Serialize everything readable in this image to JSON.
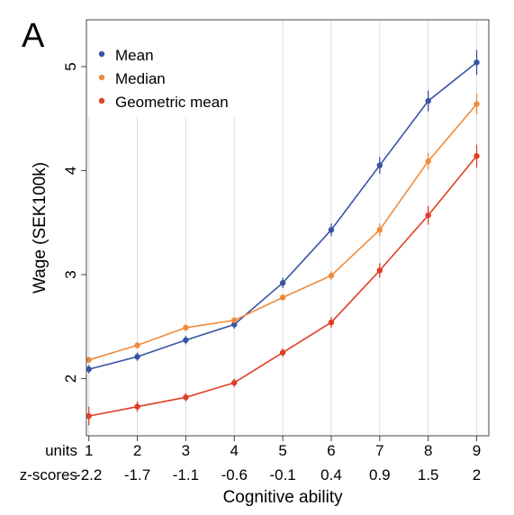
{
  "panel_label": "A",
  "chart_data": {
    "type": "line",
    "title": "",
    "xlabel": "Cognitive ability",
    "ylabel": "Wage (SEK100k)",
    "x": [
      1,
      2,
      3,
      4,
      5,
      6,
      7,
      8,
      9
    ],
    "x_tick_rows": [
      {
        "label": "units",
        "ticks": [
          "1",
          "2",
          "3",
          "4",
          "5",
          "6",
          "7",
          "8",
          "9"
        ]
      },
      {
        "label": "z-scores",
        "ticks": [
          "-2.2",
          "-1.7",
          "-1.1",
          "-0.6",
          "-0.1",
          "0.4",
          "0.9",
          "1.5",
          "2"
        ]
      }
    ],
    "xlim": [
      0.95,
      9.25
    ],
    "ylim": [
      1.45,
      5.45
    ],
    "y_ticks": [
      2,
      3,
      4,
      5
    ],
    "grid": "vertical",
    "legend_position": "top-left",
    "series": [
      {
        "name": "Mean",
        "color": "#3953a4",
        "values": [
          2.09,
          2.21,
          2.37,
          2.52,
          2.92,
          3.43,
          4.05,
          4.67,
          5.04
        ],
        "errors": [
          0.04,
          0.04,
          0.04,
          0.04,
          0.05,
          0.06,
          0.08,
          0.1,
          0.12
        ]
      },
      {
        "name": "Median",
        "color": "#f08a3a",
        "values": [
          2.18,
          2.32,
          2.49,
          2.56,
          2.78,
          2.99,
          3.43,
          4.09,
          4.64
        ],
        "errors": [
          0.03,
          0.03,
          0.03,
          0.03,
          0.03,
          0.04,
          0.06,
          0.08,
          0.1
        ]
      },
      {
        "name": "Geometric mean",
        "color": "#e03e26",
        "values": [
          1.64,
          1.73,
          1.82,
          1.96,
          2.25,
          2.54,
          3.04,
          3.57,
          4.14
        ],
        "errors": [
          0.09,
          0.05,
          0.04,
          0.04,
          0.04,
          0.05,
          0.07,
          0.09,
          0.11
        ]
      }
    ]
  }
}
